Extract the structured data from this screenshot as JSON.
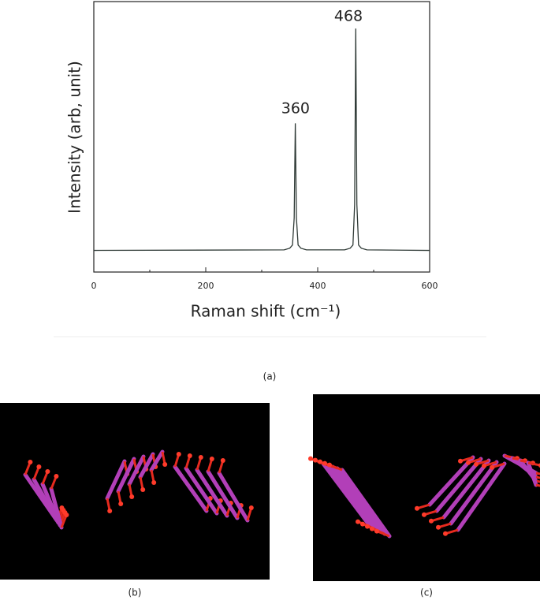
{
  "chart_data": {
    "type": "line",
    "x_label": "Raman shift (cm⁻¹)",
    "y_label": "Intensity (arb, unit)",
    "annotations": [
      "360",
      "468"
    ],
    "x": [
      0,
      340,
      350,
      355,
      358,
      360,
      362,
      365,
      370,
      380,
      448,
      458,
      463,
      466,
      468,
      470,
      473,
      478,
      488,
      600
    ],
    "series": [
      {
        "color": "#2f3a36",
        "values": [
          0.08,
          0.082,
          0.088,
          0.1,
          0.2,
          0.55,
          0.2,
          0.1,
          0.088,
          0.082,
          0.082,
          0.088,
          0.1,
          0.25,
          0.9,
          0.25,
          0.1,
          0.088,
          0.082,
          0.08
        ]
      }
    ],
    "xlim": [
      0,
      600
    ],
    "xticks": [
      0,
      200,
      400,
      600
    ],
    "ylim": [
      0,
      1
    ]
  },
  "captions": [
    "(a)",
    "(b)",
    "(c)"
  ]
}
